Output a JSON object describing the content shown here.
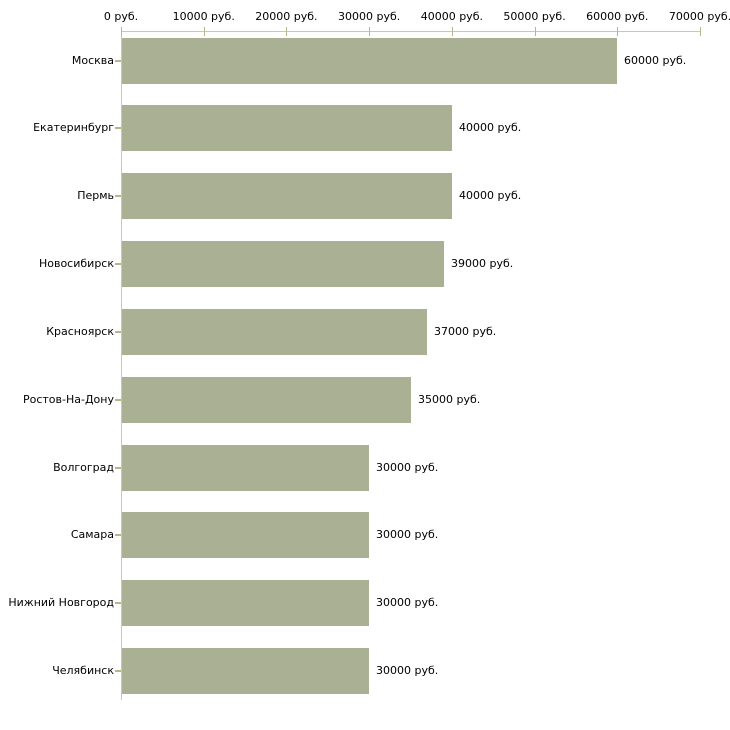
{
  "chart_data": {
    "type": "bar",
    "orientation": "horizontal",
    "title": "",
    "xlabel": "",
    "ylabel": "",
    "categories": [
      "Москва",
      "Екатеринбург",
      "Пермь",
      "Новосибирск",
      "Красноярск",
      "Ростов-На-Дону",
      "Волгоград",
      "Самара",
      "Нижний Новгород",
      "Челябинск"
    ],
    "values": [
      60000,
      40000,
      40000,
      39000,
      37000,
      35000,
      30000,
      30000,
      30000,
      30000
    ],
    "value_labels": [
      "60000 руб.",
      "40000 руб.",
      "40000 руб.",
      "39000 руб.",
      "37000 руб.",
      "35000 руб.",
      "30000 руб.",
      "30000 руб.",
      "30000 руб.",
      "30000 руб."
    ],
    "x_axis": {
      "position": "top",
      "min": 0,
      "max": 70000,
      "ticks": [
        0,
        10000,
        20000,
        30000,
        40000,
        50000,
        60000,
        70000
      ],
      "tick_labels": [
        "0 руб.",
        "10000 руб.",
        "20000 руб.",
        "30000 руб.",
        "40000 руб.",
        "50000 руб.",
        "60000 руб.",
        "70000 руб."
      ]
    },
    "legend": "none",
    "grid": "off",
    "colors": {
      "bar_fill": "#aab094",
      "axis_line": "#c6c6c6",
      "tick_mark": "#b4b78b",
      "text": "#000000",
      "background": "#ffffff"
    }
  }
}
